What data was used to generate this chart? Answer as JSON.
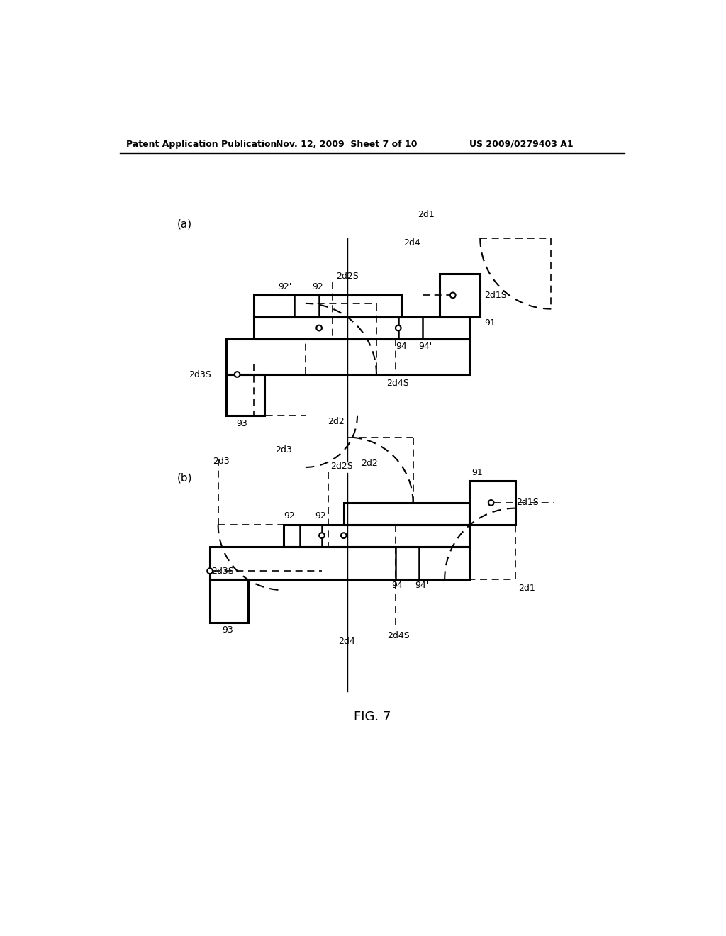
{
  "header_left": "Patent Application Publication",
  "header_mid": "Nov. 12, 2009  Sheet 7 of 10",
  "header_right": "US 2009/0279403 A1",
  "figure_label": "FIG. 7",
  "background": "#ffffff",
  "lc": "#000000"
}
